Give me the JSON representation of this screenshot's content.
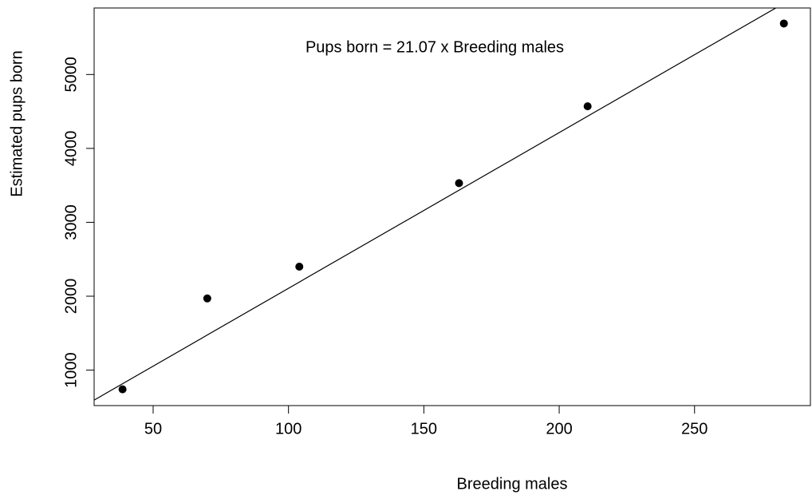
{
  "chart_data": {
    "type": "scatter",
    "annotation": "Pups born = 21.07 x Breeding males",
    "x_label": "Breeding males",
    "y_label": "Estimated pups born",
    "series": [
      {
        "x": [
          38.7,
          70,
          104,
          163,
          210.5,
          283
        ],
        "values": [
          740,
          1970,
          2400,
          3530,
          4570,
          5690
        ],
        "color": "#000000"
      }
    ],
    "regression_slope": 21.07,
    "xlim": [
      28.2,
      292.8
    ],
    "xticks": [
      50,
      100,
      150,
      200,
      250
    ],
    "ylim": [
      520,
      5900
    ],
    "yticks": [
      1000,
      2000,
      3000,
      4000,
      5000
    ]
  }
}
